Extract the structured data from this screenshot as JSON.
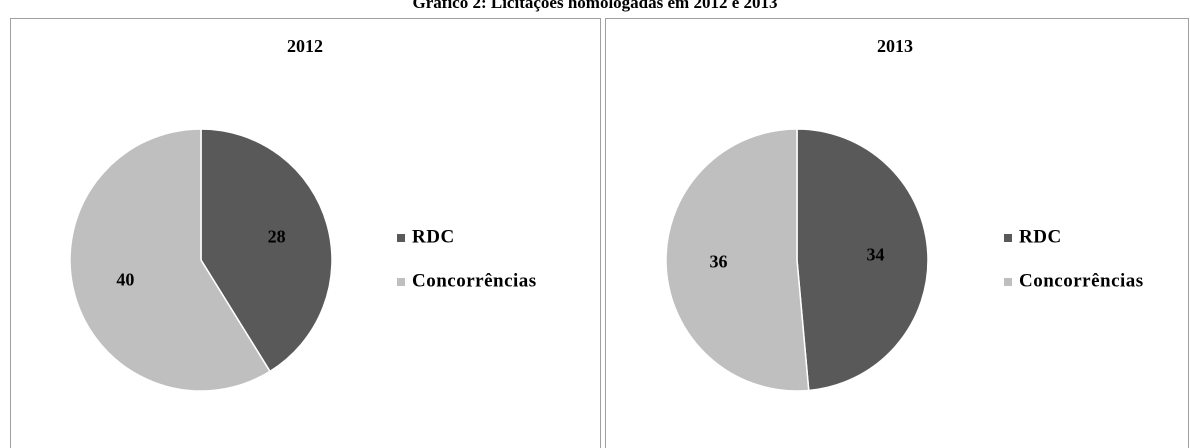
{
  "caption": "Gráfico 2: Licitações homologadas em 2012 e 2013",
  "chart_data": [
    {
      "type": "pie",
      "title": "2012",
      "categories": [
        "RDC",
        "Concorrências"
      ],
      "values": [
        28,
        40
      ],
      "colors": [
        "#595959",
        "#bfbfbf"
      ]
    },
    {
      "type": "pie",
      "title": "2013",
      "categories": [
        "RDC",
        "Concorrências"
      ],
      "values": [
        34,
        36
      ],
      "colors": [
        "#595959",
        "#bfbfbf"
      ]
    }
  ]
}
